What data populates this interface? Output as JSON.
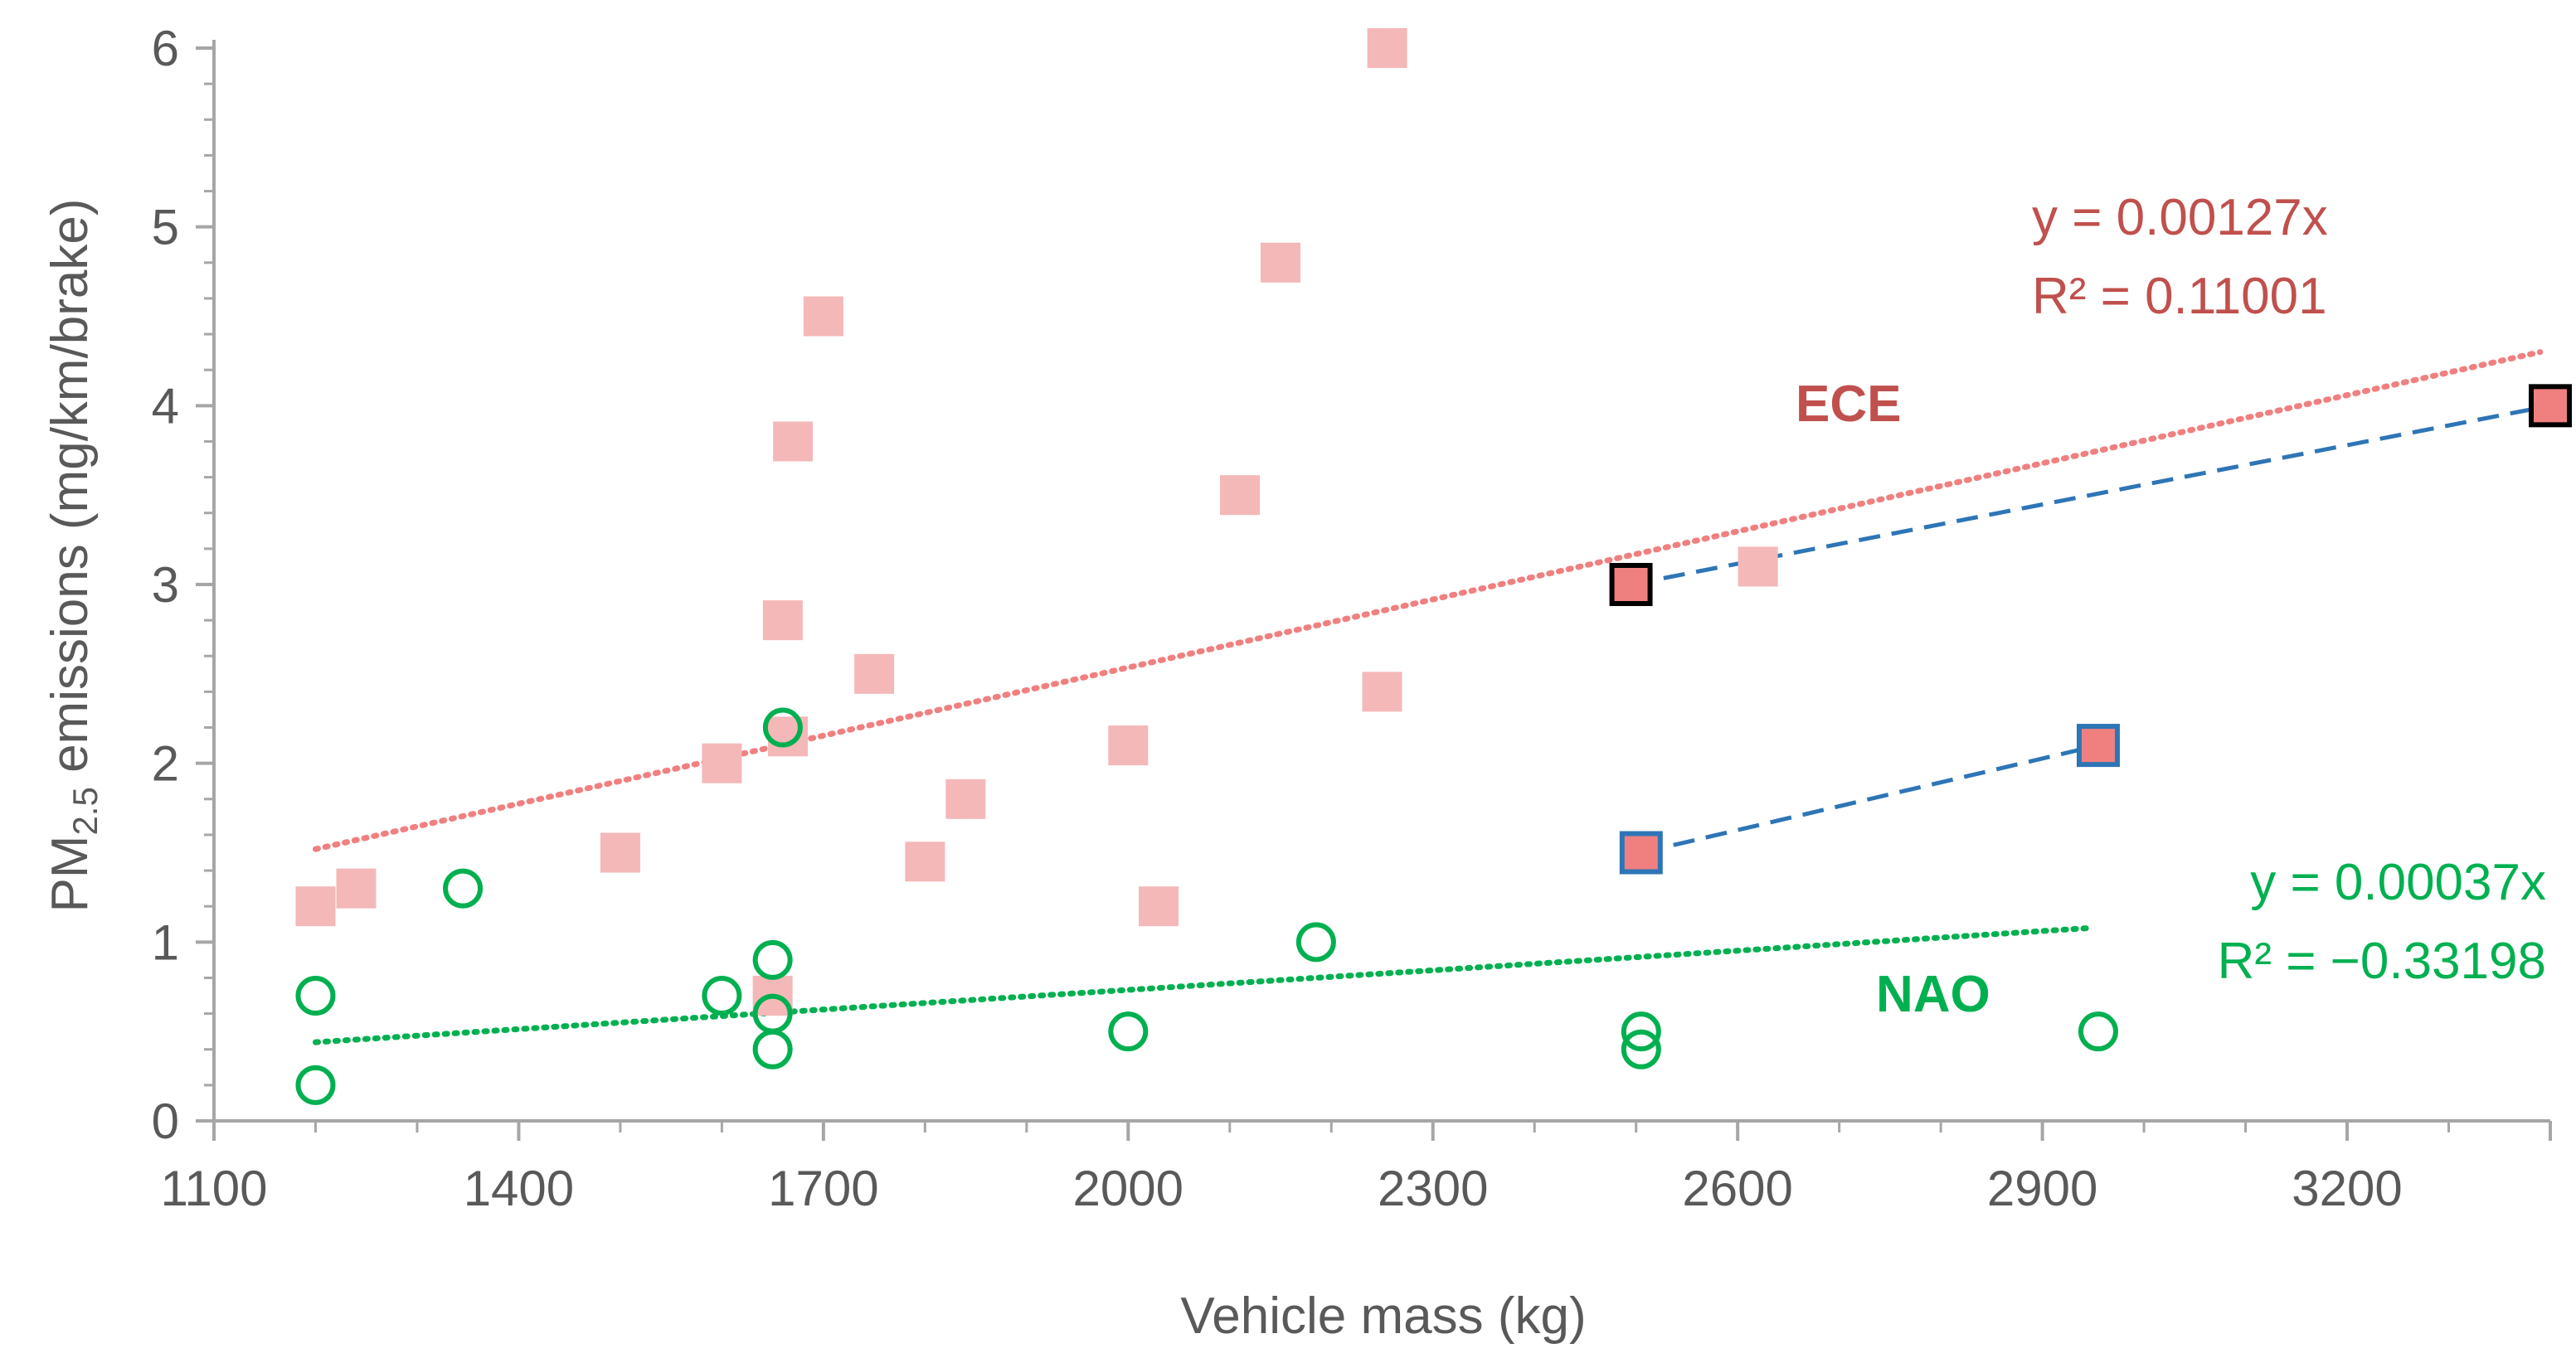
{
  "chart_data": {
    "type": "scatter",
    "xlabel": "Vehicle mass (kg)",
    "ylabel_prefix": "PM",
    "ylabel_sub": "2.5",
    "ylabel_suffix": " emissions (mg/km/brake)",
    "xlim": [
      1100,
      3400
    ],
    "ylim": [
      0,
      6
    ],
    "x_ticks": [
      1100,
      1400,
      1700,
      2000,
      2300,
      2600,
      2900,
      3200
    ],
    "y_ticks": [
      0,
      1,
      2,
      3,
      4,
      5,
      6
    ],
    "grid": false,
    "series": [
      {
        "name": "ECE",
        "marker": "filled-square",
        "color": "#f4b8b8",
        "points": [
          [
            1200,
            1.2
          ],
          [
            1240,
            1.3
          ],
          [
            1500,
            1.5
          ],
          [
            1600,
            2.0
          ],
          [
            1650,
            0.7
          ],
          [
            1660,
            2.8
          ],
          [
            1665,
            2.15
          ],
          [
            1670,
            3.8
          ],
          [
            1700,
            4.5
          ],
          [
            1750,
            2.5
          ],
          [
            1800,
            1.45
          ],
          [
            1840,
            1.8
          ],
          [
            2000,
            2.1
          ],
          [
            2030,
            1.2
          ],
          [
            2110,
            3.5
          ],
          [
            2150,
            4.8
          ],
          [
            2250,
            2.4
          ],
          [
            2255,
            6.0
          ],
          [
            2620,
            3.1
          ]
        ]
      },
      {
        "name": "NAO",
        "marker": "open-circle",
        "color": "#00b050",
        "points": [
          [
            1200,
            0.2
          ],
          [
            1200,
            0.7
          ],
          [
            1345,
            1.3
          ],
          [
            1600,
            0.7
          ],
          [
            1650,
            0.4
          ],
          [
            1650,
            0.6
          ],
          [
            1650,
            0.9
          ],
          [
            1660,
            2.2
          ],
          [
            2000,
            0.5
          ],
          [
            2185,
            1.0
          ],
          [
            2505,
            0.4
          ],
          [
            2505,
            0.5
          ],
          [
            2955,
            0.5
          ]
        ]
      },
      {
        "name": "highlight-black",
        "marker": "outlined-square",
        "color": "#f08080",
        "edge_color": "#000000",
        "points": [
          [
            2495,
            3.0
          ],
          [
            3400,
            4.0
          ]
        ]
      },
      {
        "name": "highlight-blue",
        "marker": "outlined-square",
        "color": "#f08080",
        "edge_color": "#2e75b6",
        "points": [
          [
            2505,
            1.5
          ],
          [
            2955,
            2.1
          ]
        ]
      }
    ],
    "lines": [
      {
        "name": "ECE trendline",
        "style": "dotted",
        "color": "#f08080",
        "from": [
          1200,
          1.52
        ],
        "to": [
          3390,
          4.3
        ]
      },
      {
        "name": "NAO trendline",
        "style": "dotted",
        "color": "#00b050",
        "from": [
          1200,
          0.44
        ],
        "to": [
          2950,
          1.08
        ]
      },
      {
        "name": "blue dashed upper",
        "style": "dashed",
        "color": "#2e75b6",
        "from": [
          2495,
          3.0
        ],
        "to": [
          3400,
          4.0
        ]
      },
      {
        "name": "blue dashed lower",
        "style": "dashed",
        "color": "#2e75b6",
        "from": [
          2505,
          1.5
        ],
        "to": [
          2955,
          2.1
        ]
      }
    ],
    "annotations": {
      "ece_eq": "y = 0.00127x",
      "ece_r2": "R² = 0.11001",
      "ece_label": "ECE",
      "nao_eq": "y = 0.00037x",
      "nao_r2": "R² = −0.33198",
      "nao_label": "NAO"
    },
    "colors": {
      "ece_text": "#c0504d",
      "nao_text": "#00b050",
      "axis": "#a6a6a6",
      "tick_text": "#595959"
    }
  }
}
